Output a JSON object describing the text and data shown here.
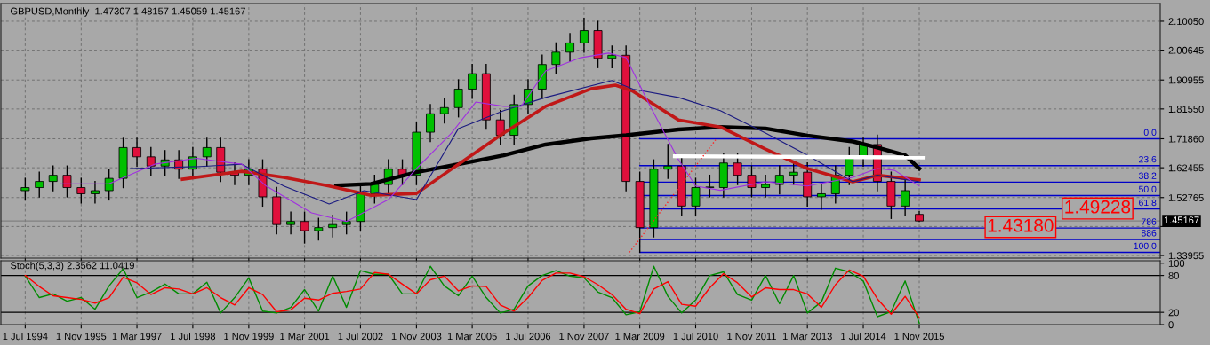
{
  "chart_data": [
    {
      "type": "candlestick",
      "title": "GBPUSD,Monthly  1.47307 1.48157 1.45059 1.45167",
      "x": [
        "1994-07",
        "1994-11",
        "1995-03",
        "1995-07",
        "1995-11",
        "1996-03",
        "1996-07",
        "1996-11",
        "1997-03",
        "1997-07",
        "1997-11",
        "1998-03",
        "1998-07",
        "1998-11",
        "1999-03",
        "1999-07",
        "1999-11",
        "2000-03",
        "2000-07",
        "2000-11",
        "2001-03",
        "2001-07",
        "2001-11",
        "2002-03",
        "2002-07",
        "2002-11",
        "2003-03",
        "2003-07",
        "2003-11",
        "2004-03",
        "2004-07",
        "2004-11",
        "2005-03",
        "2005-07",
        "2005-11",
        "2006-03",
        "2006-07",
        "2006-11",
        "2007-03",
        "2007-07",
        "2007-11",
        "2008-03",
        "2008-07",
        "2008-11",
        "2009-03",
        "2009-07",
        "2009-11",
        "2010-03",
        "2010-07",
        "2010-11",
        "2011-03",
        "2011-07",
        "2011-11",
        "2012-03",
        "2012-07",
        "2012-11",
        "2013-03",
        "2013-07",
        "2013-11",
        "2014-03",
        "2014-07",
        "2014-11",
        "2015-03",
        "2015-07",
        "2015-11"
      ],
      "ohlc": [
        [
          1.55,
          1.59,
          1.52,
          1.56
        ],
        [
          1.56,
          1.61,
          1.53,
          1.58
        ],
        [
          1.58,
          1.63,
          1.55,
          1.6
        ],
        [
          1.6,
          1.63,
          1.53,
          1.56
        ],
        [
          1.56,
          1.59,
          1.51,
          1.54
        ],
        [
          1.54,
          1.58,
          1.51,
          1.55
        ],
        [
          1.55,
          1.62,
          1.52,
          1.59
        ],
        [
          1.59,
          1.72,
          1.56,
          1.69
        ],
        [
          1.69,
          1.72,
          1.63,
          1.66
        ],
        [
          1.66,
          1.69,
          1.6,
          1.63
        ],
        [
          1.63,
          1.68,
          1.6,
          1.65
        ],
        [
          1.65,
          1.68,
          1.59,
          1.62
        ],
        [
          1.62,
          1.69,
          1.59,
          1.66
        ],
        [
          1.66,
          1.72,
          1.63,
          1.69
        ],
        [
          1.69,
          1.72,
          1.58,
          1.61
        ],
        [
          1.61,
          1.64,
          1.57,
          1.6
        ],
        [
          1.6,
          1.65,
          1.57,
          1.62
        ],
        [
          1.62,
          1.65,
          1.5,
          1.53
        ],
        [
          1.53,
          1.56,
          1.41,
          1.44
        ],
        [
          1.44,
          1.48,
          1.41,
          1.45
        ],
        [
          1.45,
          1.48,
          1.38,
          1.42
        ],
        [
          1.42,
          1.46,
          1.39,
          1.43
        ],
        [
          1.43,
          1.47,
          1.4,
          1.44
        ],
        [
          1.44,
          1.48,
          1.41,
          1.45
        ],
        [
          1.45,
          1.57,
          1.42,
          1.54
        ],
        [
          1.54,
          1.6,
          1.51,
          1.57
        ],
        [
          1.57,
          1.65,
          1.54,
          1.62
        ],
        [
          1.62,
          1.65,
          1.57,
          1.6
        ],
        [
          1.6,
          1.77,
          1.57,
          1.74
        ],
        [
          1.74,
          1.83,
          1.71,
          1.8
        ],
        [
          1.8,
          1.85,
          1.77,
          1.82
        ],
        [
          1.82,
          1.91,
          1.79,
          1.88
        ],
        [
          1.88,
          1.96,
          1.85,
          1.93
        ],
        [
          1.93,
          1.96,
          1.75,
          1.78
        ],
        [
          1.78,
          1.81,
          1.7,
          1.73
        ],
        [
          1.73,
          1.86,
          1.7,
          1.83
        ],
        [
          1.83,
          1.91,
          1.8,
          1.88
        ],
        [
          1.88,
          1.99,
          1.85,
          1.96
        ],
        [
          1.96,
          2.03,
          1.93,
          2.0
        ],
        [
          2.0,
          2.06,
          1.97,
          2.03
        ],
        [
          2.03,
          2.11,
          2.0,
          2.07
        ],
        [
          2.07,
          2.1,
          1.95,
          1.98
        ],
        [
          1.98,
          2.02,
          1.95,
          1.99
        ],
        [
          1.99,
          2.02,
          1.55,
          1.58
        ],
        [
          1.58,
          1.61,
          1.35,
          1.43
        ],
        [
          1.43,
          1.65,
          1.4,
          1.62
        ],
        [
          1.62,
          1.7,
          1.59,
          1.63
        ],
        [
          1.63,
          1.66,
          1.47,
          1.5
        ],
        [
          1.5,
          1.59,
          1.47,
          1.56
        ],
        [
          1.56,
          1.6,
          1.53,
          1.56
        ],
        [
          1.56,
          1.67,
          1.53,
          1.64
        ],
        [
          1.64,
          1.67,
          1.57,
          1.6
        ],
        [
          1.6,
          1.63,
          1.53,
          1.56
        ],
        [
          1.56,
          1.6,
          1.53,
          1.57
        ],
        [
          1.57,
          1.63,
          1.54,
          1.6
        ],
        [
          1.6,
          1.64,
          1.57,
          1.61
        ],
        [
          1.61,
          1.64,
          1.5,
          1.53
        ],
        [
          1.53,
          1.57,
          1.49,
          1.54
        ],
        [
          1.54,
          1.63,
          1.51,
          1.6
        ],
        [
          1.6,
          1.69,
          1.57,
          1.66
        ],
        [
          1.66,
          1.72,
          1.63,
          1.7
        ],
        [
          1.7,
          1.73,
          1.55,
          1.58
        ],
        [
          1.58,
          1.61,
          1.46,
          1.5
        ],
        [
          1.5,
          1.59,
          1.47,
          1.55
        ],
        [
          1.47307,
          1.48157,
          1.45059,
          1.45167
        ]
      ],
      "colors": [
        "#00c000",
        "#00c000",
        "#00c000",
        "#e0103c",
        "#e0103c",
        "#00c000",
        "#00c000",
        "#00c000",
        "#e0103c",
        "#e0103c",
        "#00c000",
        "#e0103c",
        "#00c000",
        "#00c000",
        "#e0103c",
        "#e0103c",
        "#00c000",
        "#e0103c",
        "#e0103c",
        "#00c000",
        "#e0103c",
        "#00c000",
        "#00c000",
        "#00c000",
        "#00c000",
        "#00c000",
        "#00c000",
        "#e0103c",
        "#00c000",
        "#00c000",
        "#00c000",
        "#00c000",
        "#00c000",
        "#e0103c",
        "#e0103c",
        "#00c000",
        "#00c000",
        "#00c000",
        "#00c000",
        "#00c000",
        "#00c000",
        "#e0103c",
        "#00c000",
        "#e0103c",
        "#e0103c",
        "#00c000",
        "#00c000",
        "#e0103c",
        "#00c000",
        "#00c000",
        "#00c000",
        "#e0103c",
        "#e0103c",
        "#00c000",
        "#00c000",
        "#00c000",
        "#e0103c",
        "#00c000",
        "#00c000",
        "#00c000",
        "#00c000",
        "#e0103c",
        "#e0103c",
        "#00c000",
        "#e0103c"
      ],
      "series": [
        {
          "type": "line",
          "color": "#000000",
          "x": [
            "2001-12",
            "2002-10",
            "2003-11",
            "2004-11",
            "2005-12",
            "2006-12",
            "2008-01",
            "2008-11",
            "2010-02",
            "2011-02",
            "2012-03",
            "2013-03",
            "2014-04",
            "2014-11",
            "2015-07",
            "2015-11"
          ],
          "values": [
            1.567,
            1.572,
            1.61,
            1.636,
            1.665,
            1.7,
            1.72,
            1.73,
            1.749,
            1.757,
            1.752,
            1.729,
            1.71,
            1.69,
            1.665,
            1.622
          ]
        },
        {
          "type": "line",
          "color": "#c01818",
          "x": [
            "1998-04",
            "1999-09",
            "2000-09",
            "2001-10",
            "2002-10",
            "2003-11",
            "2004-11",
            "2005-12",
            "2006-12",
            "2008-01",
            "2008-08",
            "2009-01",
            "2010-02",
            "2011-02",
            "2012-03",
            "2013-03",
            "2014-04",
            "2014-11",
            "2015-11"
          ],
          "values": [
            1.587,
            1.613,
            1.593,
            1.565,
            1.535,
            1.541,
            1.636,
            1.737,
            1.824,
            1.881,
            1.893,
            1.873,
            1.78,
            1.757,
            1.685,
            1.622,
            1.579,
            1.6,
            1.585
          ]
        },
        {
          "type": "line",
          "color": "#1a1a80",
          "x": [
            "1997-01",
            "1998-08",
            "1999-09",
            "2000-09",
            "2001-10",
            "2002-08",
            "2003-11",
            "2004-11",
            "2005-12",
            "2006-12",
            "2008-07",
            "2009-01",
            "2010-02",
            "2011-02",
            "2012-03",
            "2013-03",
            "2014-04",
            "2014-11",
            "2015-11"
          ],
          "values": [
            1.622,
            1.628,
            1.636,
            1.565,
            1.507,
            1.55,
            1.521,
            1.752,
            1.81,
            1.853,
            1.908,
            1.88,
            1.853,
            1.81,
            1.737,
            1.665,
            1.579,
            1.6,
            1.579
          ]
        },
        {
          "type": "line",
          "color": "#a030e0",
          "x": [
            "1995-05",
            "1996-07",
            "1997-08",
            "1998-08",
            "1999-09",
            "2000-04",
            "2001-05",
            "2002-03",
            "2003-03",
            "2003-11",
            "2004-09",
            "2005-04",
            "2005-12",
            "2006-05",
            "2006-12",
            "2007-10",
            "2008-06",
            "2008-11",
            "2009-06",
            "2010-02",
            "2010-07",
            "2011-02",
            "2012-03",
            "2013-03",
            "2014-04",
            "2014-11",
            "2015-04",
            "2015-11"
          ],
          "values": [
            1.572,
            1.572,
            1.636,
            1.655,
            1.636,
            1.565,
            1.478,
            1.45,
            1.521,
            1.622,
            1.737,
            1.838,
            1.824,
            1.824,
            1.939,
            1.982,
            1.997,
            1.982,
            1.824,
            1.651,
            1.565,
            1.551,
            1.579,
            1.565,
            1.593,
            1.622,
            1.616,
            1.565
          ]
        },
        {
          "type": "line",
          "color": "#ffffff",
          "x": [
            "2010-01",
            "2015-12"
          ],
          "values": [
            1.662,
            1.658
          ]
        },
        {
          "type": "line",
          "color": "#ff2020",
          "line_style": "dotted",
          "x": [
            "2008-12",
            "2011-01"
          ],
          "values": [
            1.35,
            1.72
          ]
        }
      ],
      "ylim": [
        1.331,
        2.158
      ],
      "yticks": [
        {
          "value": 2.1005,
          "label": "2.10050"
        },
        2.00645,
        1.90955,
        {
          "value": 1.8155,
          "label": "1.81550"
        },
        {
          "value": 1.7186,
          "label": "1.71860"
        },
        1.62455,
        1.52765,
        {
          "value": 1.4336,
          "label": null
        },
        1.33955
      ],
      "xlim": [
        "1993-12-01",
        "2021-08-01"
      ],
      "tick_labels": "y",
      "grid": true,
      "ref_lines": [
        {
          "axis": "y",
          "value": 1.7186,
          "color": "#0000c8"
        },
        {
          "axis": "y",
          "value": 1.6315,
          "color": "#0000c8"
        },
        {
          "axis": "y",
          "value": 1.5777,
          "color": "#0000c8"
        },
        {
          "axis": "y",
          "value": 1.5342,
          "color": "#0000c8"
        },
        {
          "axis": "y",
          "value": 1.4906,
          "color": "#0000c8"
        },
        {
          "axis": "y",
          "value": 1.4286,
          "color": "#0000c8"
        },
        {
          "axis": "y",
          "value": 1.3917,
          "color": "#0000c8"
        },
        {
          "axis": "y",
          "value": 1.3497,
          "color": "#0000c8"
        },
        {
          "axis": "y",
          "value": 1.45167,
          "label": "1.45167",
          "color": "#808080"
        }
      ],
      "annotations": [
        {
          "text": "1.49228",
          "x": "2020-02",
          "y": 1.49228
        },
        {
          "text": "1.43180",
          "x": "2018-04",
          "y": 1.4318
        },
        "0.0",
        "23.6",
        "38.2",
        "50.0",
        "61.8",
        "786",
        "886",
        "100.0"
      ]
    },
    {
      "type": "line",
      "title": "Stoch(5,3,3) 2.3562 11.0419",
      "x": [
        "1994-07",
        "1994-11",
        "1995-03",
        "1995-07",
        "1995-11",
        "1996-03",
        "1996-07",
        "1996-11",
        "1997-03",
        "1997-07",
        "1997-11",
        "1998-03",
        "1998-07",
        "1998-11",
        "1999-03",
        "1999-07",
        "1999-11",
        "2000-03",
        "2000-07",
        "2000-11",
        "2001-03",
        "2001-07",
        "2001-11",
        "2002-03",
        "2002-07",
        "2002-11",
        "2003-03",
        "2003-07",
        "2003-11",
        "2004-03",
        "2004-07",
        "2004-11",
        "2005-03",
        "2005-07",
        "2005-11",
        "2006-03",
        "2006-07",
        "2006-11",
        "2007-03",
        "2007-07",
        "2007-11",
        "2008-03",
        "2008-07",
        "2008-11",
        "2009-03",
        "2009-07",
        "2009-11",
        "2010-03",
        "2010-07",
        "2010-11",
        "2011-03",
        "2011-07",
        "2011-11",
        "2012-03",
        "2012-07",
        "2012-11",
        "2013-03",
        "2013-07",
        "2013-11",
        "2014-03",
        "2014-07",
        "2014-11",
        "2015-03",
        "2015-07",
        "2015-11"
      ],
      "series": [
        {
          "color": "#008c00",
          "values": [
            79,
            44,
            50,
            38,
            44,
            25,
            63,
            91,
            44,
            53,
            66,
            50,
            50,
            69,
            19,
            44,
            76,
            22,
            19,
            28,
            57,
            22,
            79,
            28,
            88,
            82,
            82,
            50,
            50,
            95,
            63,
            47,
            79,
            44,
            19,
            25,
            63,
            80,
            88,
            79,
            76,
            53,
            44,
            16,
            21,
            95,
            46,
            19,
            40,
            80,
            86,
            49,
            40,
            80,
            34,
            80,
            19,
            37,
            92,
            86,
            71,
            13,
            21,
            71,
            2.3562
          ]
        },
        {
          "color": "#ff0000",
          "values": [
            80,
            62,
            47,
            44,
            41,
            35,
            44,
            77,
            68,
            49,
            60,
            58,
            50,
            60,
            44,
            32,
            60,
            49,
            21,
            24,
            43,
            40,
            51,
            54,
            58,
            85,
            82,
            66,
            50,
            73,
            79,
            55,
            63,
            62,
            32,
            22,
            44,
            72,
            84,
            84,
            78,
            65,
            49,
            25,
            18,
            58,
            70,
            33,
            30,
            60,
            83,
            68,
            45,
            60,
            57,
            57,
            50,
            28,
            65,
            89,
            79,
            42,
            17,
            46,
            11.0419
          ]
        }
      ],
      "ylim": [
        0,
        104
      ],
      "yticks": [
        0,
        20,
        80,
        100
      ],
      "xlim": [
        "1993-12-01",
        "2021-08-01"
      ],
      "xticks": [
        {
          "value": "1994-07",
          "label": "1 Jul 1994"
        },
        {
          "value": "1995-11",
          "label": "1 Nov 1995"
        },
        {
          "value": "1997-03",
          "label": "1 Mar 1997"
        },
        {
          "value": "1998-07",
          "label": "1 Jul 1998"
        },
        {
          "value": "1999-11",
          "label": "1 Nov 1999"
        },
        {
          "value": "2001-03",
          "label": "1 Mar 2001"
        },
        {
          "value": "2002-07",
          "label": "1 Jul 2002"
        },
        {
          "value": "2003-11",
          "label": "1 Nov 2003"
        },
        {
          "value": "2005-03",
          "label": "1 Mar 2005"
        },
        {
          "value": "2006-07",
          "label": "1 Jul 2006"
        },
        {
          "value": "2007-11",
          "label": "1 Nov 2007"
        },
        {
          "value": "2009-03",
          "label": "1 Mar 2009"
        },
        {
          "value": "2010-07",
          "label": "1 Jul 2010"
        },
        {
          "value": "2011-11",
          "label": "1 Nov 2011"
        },
        {
          "value": "2013-03",
          "label": "1 Mar 2013"
        },
        {
          "value": "2014-07",
          "label": "1 Jul 2014"
        },
        {
          "value": "2015-11",
          "label": "1 Nov 2015"
        }
      ],
      "grid": "x",
      "ref_lines": [
        {
          "axis": "y",
          "value": 80,
          "color": "#000000"
        },
        {
          "axis": "y",
          "value": 20,
          "color": "#000000"
        }
      ]
    }
  ]
}
